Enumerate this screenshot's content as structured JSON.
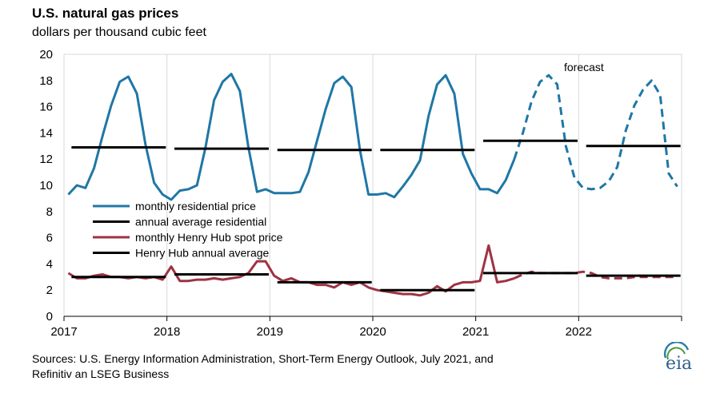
{
  "chart_data": {
    "type": "line",
    "title": "U.S. natural gas prices",
    "subtitle": "dollars per thousand cubic feet",
    "xlabel": "",
    "ylabel": "",
    "ylim": [
      0,
      20
    ],
    "yticks": [
      0,
      2,
      4,
      6,
      8,
      10,
      12,
      14,
      16,
      18,
      20
    ],
    "xlim": [
      2017,
      2023
    ],
    "xticks": [
      "2017",
      "2018",
      "2019",
      "2020",
      "2021",
      "2022"
    ],
    "grid": "vertical",
    "legend_position": "left-middle",
    "annotation": "forecast",
    "forecast_start_month": "2021-06",
    "series": [
      {
        "name": "monthly residential price",
        "color": "#1f77a6",
        "style": "line",
        "months": [
          "2017-01",
          "2017-02",
          "2017-03",
          "2017-04",
          "2017-05",
          "2017-06",
          "2017-07",
          "2017-08",
          "2017-09",
          "2017-10",
          "2017-11",
          "2017-12",
          "2018-01",
          "2018-02",
          "2018-03",
          "2018-04",
          "2018-05",
          "2018-06",
          "2018-07",
          "2018-08",
          "2018-09",
          "2018-10",
          "2018-11",
          "2018-12",
          "2019-01",
          "2019-02",
          "2019-03",
          "2019-04",
          "2019-05",
          "2019-06",
          "2019-07",
          "2019-08",
          "2019-09",
          "2019-10",
          "2019-11",
          "2019-12",
          "2020-01",
          "2020-02",
          "2020-03",
          "2020-04",
          "2020-05",
          "2020-06",
          "2020-07",
          "2020-08",
          "2020-09",
          "2020-10",
          "2020-11",
          "2020-12",
          "2021-01",
          "2021-02",
          "2021-03",
          "2021-04",
          "2021-05",
          "2021-06",
          "2021-07",
          "2021-08",
          "2021-09",
          "2021-10",
          "2021-11",
          "2021-12",
          "2022-01",
          "2022-02",
          "2022-03",
          "2022-04",
          "2022-05",
          "2022-06",
          "2022-07",
          "2022-08",
          "2022-09",
          "2022-10",
          "2022-11",
          "2022-12"
        ],
        "values": [
          9.3,
          10.0,
          9.8,
          11.3,
          13.8,
          16.1,
          17.9,
          18.3,
          17.0,
          13.1,
          10.2,
          9.3,
          8.9,
          9.6,
          9.7,
          10.0,
          12.9,
          16.5,
          17.9,
          18.5,
          17.2,
          12.9,
          9.5,
          9.7,
          9.4,
          9.4,
          9.4,
          9.5,
          11.0,
          13.4,
          15.8,
          17.8,
          18.3,
          17.5,
          12.7,
          9.3,
          9.3,
          9.4,
          9.1,
          9.9,
          10.8,
          11.9,
          15.3,
          17.7,
          18.4,
          17.0,
          12.4,
          10.9,
          9.7,
          9.7,
          9.4,
          10.4,
          12.0,
          14.0,
          16.4,
          17.9,
          18.4,
          17.7,
          13.0,
          10.6,
          9.8,
          9.7,
          9.8,
          10.3,
          11.4,
          14.2,
          16.1,
          17.3,
          18.0,
          16.9,
          10.9,
          9.9
        ]
      },
      {
        "name": "annual average residential",
        "color": "#000000",
        "style": "segments",
        "segments": [
          {
            "year": 2017,
            "value": 12.9
          },
          {
            "year": 2018,
            "value": 12.8
          },
          {
            "year": 2019,
            "value": 12.7
          },
          {
            "year": 2020,
            "value": 12.7
          },
          {
            "year": 2021,
            "value": 13.4
          },
          {
            "year": 2022,
            "value": 13.0
          }
        ]
      },
      {
        "name": "monthly Henry Hub spot price",
        "color": "#9e3342",
        "style": "line",
        "values": [
          3.3,
          2.9,
          2.9,
          3.1,
          3.2,
          3.0,
          3.0,
          2.9,
          3.0,
          2.9,
          3.0,
          2.8,
          3.8,
          2.7,
          2.7,
          2.8,
          2.8,
          2.9,
          2.8,
          2.9,
          3.0,
          3.3,
          4.2,
          4.2,
          3.1,
          2.7,
          2.9,
          2.6,
          2.6,
          2.4,
          2.4,
          2.2,
          2.6,
          2.4,
          2.6,
          2.2,
          2.0,
          1.9,
          1.8,
          1.7,
          1.7,
          1.6,
          1.8,
          2.3,
          1.9,
          2.4,
          2.6,
          2.6,
          2.7,
          5.4,
          2.6,
          2.7,
          2.9,
          3.2,
          3.4,
          3.3,
          3.3,
          3.3,
          3.3,
          3.3,
          3.4,
          3.3,
          3.0,
          2.9,
          2.9,
          2.9,
          3.0,
          3.0,
          3.0,
          3.0,
          3.0,
          3.0
        ]
      },
      {
        "name": "Henry Hub annual average",
        "color": "#000000",
        "style": "segments",
        "segments": [
          {
            "year": 2017,
            "value": 3.0
          },
          {
            "year": 2018,
            "value": 3.2
          },
          {
            "year": 2019,
            "value": 2.6
          },
          {
            "year": 2020,
            "value": 2.0
          },
          {
            "year": 2021,
            "value": 3.3
          },
          {
            "year": 2022,
            "value": 3.1
          }
        ]
      }
    ]
  },
  "footer": {
    "sources_line1": "Sources: U.S. Energy Information Administration, Short-Term Energy Outlook, July 2021, and",
    "sources_line2": "Refinitiv an LSEG Business",
    "logo_text": "eia"
  }
}
